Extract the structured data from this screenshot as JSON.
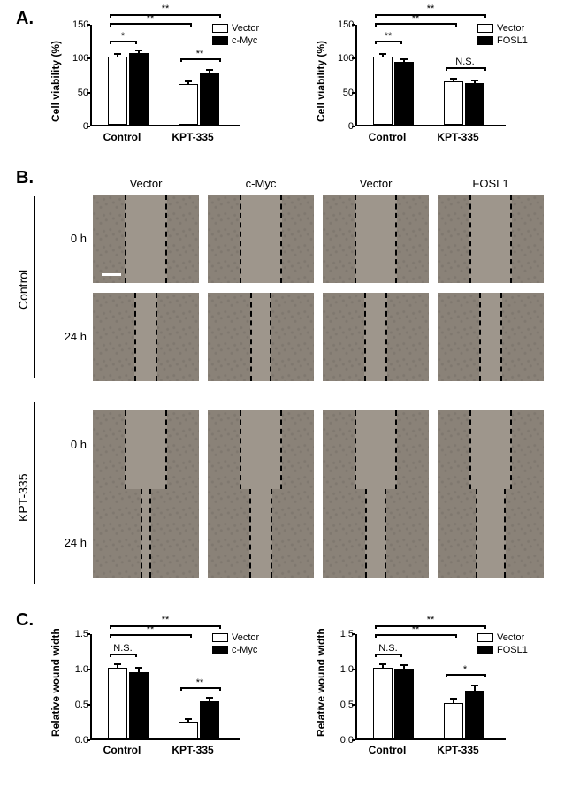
{
  "panelA": {
    "label": "A.",
    "chart1": {
      "type": "bar",
      "ylabel": "Cell viability (%)",
      "ylim": [
        0,
        150
      ],
      "ytick_step": 50,
      "categories": [
        "Control",
        "KPT-335"
      ],
      "series": [
        {
          "name": "Vector",
          "color": "#ffffff"
        },
        {
          "name": "c-Myc",
          "color": "#000000"
        }
      ],
      "values": [
        [
          100,
          105
        ],
        [
          60,
          77
        ]
      ],
      "errors": [
        [
          2,
          2
        ],
        [
          2,
          3
        ]
      ],
      "sig": [
        {
          "from": "ctrl-v",
          "to": "ctrl-m",
          "text": "*"
        },
        {
          "from": "ctrl-v",
          "to": "kpt-v",
          "text": "**"
        },
        {
          "from": "ctrl-m",
          "to": "kpt-m",
          "text": "**"
        },
        {
          "from": "kpt-v",
          "to": "kpt-m",
          "text": "**"
        }
      ],
      "legend": [
        "Vector",
        "c-Myc"
      ]
    },
    "chart2": {
      "type": "bar",
      "ylabel": "Cell viability (%)",
      "ylim": [
        0,
        150
      ],
      "ytick_step": 50,
      "categories": [
        "Control",
        "KPT-335"
      ],
      "series": [
        {
          "name": "Vector",
          "color": "#ffffff"
        },
        {
          "name": "FOSL1",
          "color": "#000000"
        }
      ],
      "values": [
        [
          100,
          93
        ],
        [
          64,
          61
        ]
      ],
      "errors": [
        [
          3,
          3
        ],
        [
          2,
          2
        ]
      ],
      "sig": [
        {
          "from": "ctrl-v",
          "to": "ctrl-m",
          "text": "**"
        },
        {
          "from": "ctrl-v",
          "to": "kpt-v",
          "text": "**"
        },
        {
          "from": "ctrl-m",
          "to": "kpt-m",
          "text": "**"
        },
        {
          "from": "kpt-v",
          "to": "kpt-m",
          "text": "N.S."
        }
      ],
      "legend": [
        "Vector",
        "FOSL1"
      ]
    }
  },
  "panelB": {
    "label": "B.",
    "columns": [
      "Vector",
      "c-Myc",
      "Vector",
      "FOSL1"
    ],
    "row_groups": [
      {
        "label": "Control",
        "rows": [
          "0 h",
          "24 h"
        ]
      },
      {
        "label": "KPT-335",
        "rows": [
          "0 h",
          "24 h"
        ]
      }
    ],
    "wound_widths_pct": [
      [
        40,
        40,
        40,
        40
      ],
      [
        22,
        20,
        22,
        22
      ],
      [
        40,
        40,
        40,
        40
      ],
      [
        10,
        22,
        20,
        28
      ]
    ],
    "bg_color": "#8a8278",
    "wound_color": "#9e968c"
  },
  "panelC": {
    "label": "C.",
    "chart1": {
      "type": "bar",
      "ylabel": "Relative wound width",
      "ylim": [
        0,
        1.5
      ],
      "ytick_step": 0.5,
      "categories": [
        "Control",
        "KPT-335"
      ],
      "series": [
        {
          "name": "Vector",
          "color": "#ffffff"
        },
        {
          "name": "c-Myc",
          "color": "#000000"
        }
      ],
      "values": [
        [
          1.0,
          0.94
        ],
        [
          0.24,
          0.52
        ]
      ],
      "errors": [
        [
          0.04,
          0.05
        ],
        [
          0.03,
          0.04
        ]
      ],
      "sig": [
        {
          "from": "ctrl-v",
          "to": "ctrl-m",
          "text": "N.S."
        },
        {
          "from": "ctrl-v",
          "to": "kpt-v",
          "text": "**"
        },
        {
          "from": "ctrl-m",
          "to": "kpt-m",
          "text": "**"
        },
        {
          "from": "kpt-v",
          "to": "kpt-m",
          "text": "**"
        }
      ],
      "legend": [
        "Vector",
        "c-Myc"
      ]
    },
    "chart2": {
      "type": "bar",
      "ylabel": "Relative wound width",
      "ylim": [
        0,
        1.5
      ],
      "ytick_step": 0.5,
      "categories": [
        "Control",
        "KPT-335"
      ],
      "series": [
        {
          "name": "Vector",
          "color": "#ffffff"
        },
        {
          "name": "FOSL1",
          "color": "#000000"
        }
      ],
      "values": [
        [
          1.0,
          0.97
        ],
        [
          0.5,
          0.68
        ]
      ],
      "errors": [
        [
          0.04,
          0.05
        ],
        [
          0.05,
          0.06
        ]
      ],
      "sig": [
        {
          "from": "ctrl-v",
          "to": "ctrl-m",
          "text": "N.S."
        },
        {
          "from": "ctrl-v",
          "to": "kpt-v",
          "text": "**"
        },
        {
          "from": "ctrl-m",
          "to": "kpt-m",
          "text": "**"
        },
        {
          "from": "kpt-v",
          "to": "kpt-m",
          "text": "*"
        }
      ],
      "legend": [
        "Vector",
        "FOSL1"
      ]
    }
  }
}
